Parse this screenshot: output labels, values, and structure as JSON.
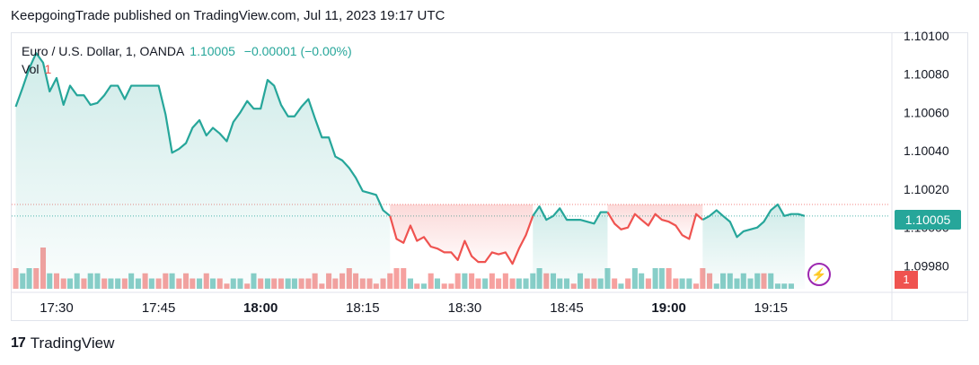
{
  "header": {
    "publisher": "KeepgoingTrade published on TradingView.com, Jul 11, 2023 19:17 UTC"
  },
  "legend": {
    "symbol": "Euro / U.S. Dollar, 1, OANDA",
    "price": "1.10005",
    "change": "−0.00001 (−0.00%)",
    "vol_label": "Vol",
    "vol_value": "1"
  },
  "price_tag": "1.10005",
  "vol_tag": "1",
  "footer": {
    "brand": "TradingView",
    "logo_text": "17"
  },
  "icons": {
    "bolt": "lightning-icon"
  },
  "colors": {
    "up": "#26a69a",
    "down": "#ef5350",
    "accent": "#9c27b0"
  },
  "chart_data": {
    "type": "area",
    "y_ticks": [
      "1.10100",
      "1.10080",
      "1.10060",
      "1.10040",
      "1.10020",
      "1.10000",
      "1.09980"
    ],
    "ylim": [
      1.09968,
      1.101
    ],
    "x_ticks": [
      {
        "label": "17:30",
        "x": 17.5,
        "bold": false
      },
      {
        "label": "17:45",
        "x": 17.75,
        "bold": false
      },
      {
        "label": "18:00",
        "x": 18.0,
        "bold": true
      },
      {
        "label": "18:15",
        "x": 18.25,
        "bold": false
      },
      {
        "label": "18:30",
        "x": 18.5,
        "bold": false
      },
      {
        "label": "18:45",
        "x": 18.75,
        "bold": false
      },
      {
        "label": "19:00",
        "x": 19.0,
        "bold": true
      },
      {
        "label": "19:15",
        "x": 19.25,
        "bold": false
      }
    ],
    "xlim": [
      17.39,
      19.54
    ],
    "reference_price": 1.10012,
    "series": [
      {
        "values": [
          {
            "x": 17.4,
            "y": 1.10063
          },
          {
            "x": 17.417,
            "y": 1.10073
          },
          {
            "x": 17.433,
            "y": 1.10083
          },
          {
            "x": 17.45,
            "y": 1.10091
          },
          {
            "x": 17.467,
            "y": 1.10086
          },
          {
            "x": 17.483,
            "y": 1.10071
          },
          {
            "x": 17.5,
            "y": 1.10078
          },
          {
            "x": 17.517,
            "y": 1.10064
          },
          {
            "x": 17.533,
            "y": 1.10074
          },
          {
            "x": 17.55,
            "y": 1.10069
          },
          {
            "x": 17.567,
            "y": 1.10069
          },
          {
            "x": 17.583,
            "y": 1.10064
          },
          {
            "x": 17.6,
            "y": 1.10065
          },
          {
            "x": 17.617,
            "y": 1.10069
          },
          {
            "x": 17.633,
            "y": 1.10074
          },
          {
            "x": 17.65,
            "y": 1.10074
          },
          {
            "x": 17.667,
            "y": 1.10067
          },
          {
            "x": 17.683,
            "y": 1.10074
          },
          {
            "x": 17.7,
            "y": 1.10074
          },
          {
            "x": 17.717,
            "y": 1.10074
          },
          {
            "x": 17.733,
            "y": 1.10074
          },
          {
            "x": 17.75,
            "y": 1.10074
          },
          {
            "x": 17.767,
            "y": 1.10059
          },
          {
            "x": 17.783,
            "y": 1.10039
          },
          {
            "x": 17.8,
            "y": 1.10041
          },
          {
            "x": 17.817,
            "y": 1.10044
          },
          {
            "x": 17.833,
            "y": 1.10052
          },
          {
            "x": 17.85,
            "y": 1.10056
          },
          {
            "x": 17.867,
            "y": 1.10048
          },
          {
            "x": 17.883,
            "y": 1.10052
          },
          {
            "x": 17.9,
            "y": 1.10049
          },
          {
            "x": 17.917,
            "y": 1.10045
          },
          {
            "x": 17.933,
            "y": 1.10055
          },
          {
            "x": 17.95,
            "y": 1.1006
          },
          {
            "x": 17.967,
            "y": 1.10066
          },
          {
            "x": 17.983,
            "y": 1.10062
          },
          {
            "x": 18.0,
            "y": 1.10062
          },
          {
            "x": 18.017,
            "y": 1.10077
          },
          {
            "x": 18.033,
            "y": 1.10074
          },
          {
            "x": 18.05,
            "y": 1.10064
          },
          {
            "x": 18.067,
            "y": 1.10058
          },
          {
            "x": 18.083,
            "y": 1.10058
          },
          {
            "x": 18.1,
            "y": 1.10063
          },
          {
            "x": 18.117,
            "y": 1.10067
          },
          {
            "x": 18.133,
            "y": 1.10057
          },
          {
            "x": 18.15,
            "y": 1.10047
          },
          {
            "x": 18.167,
            "y": 1.10047
          },
          {
            "x": 18.183,
            "y": 1.10037
          },
          {
            "x": 18.2,
            "y": 1.10035
          },
          {
            "x": 18.217,
            "y": 1.10031
          },
          {
            "x": 18.233,
            "y": 1.10026
          },
          {
            "x": 18.25,
            "y": 1.10019
          },
          {
            "x": 18.267,
            "y": 1.10018
          },
          {
            "x": 18.283,
            "y": 1.10017
          },
          {
            "x": 18.3,
            "y": 1.10009
          },
          {
            "x": 18.317,
            "y": 1.10006
          }
        ]
      },
      {
        "values": [
          {
            "x": 18.317,
            "y": 1.10006
          },
          {
            "x": 18.333,
            "y": 1.09994
          },
          {
            "x": 18.35,
            "y": 1.09992
          },
          {
            "x": 18.367,
            "y": 1.10001
          },
          {
            "x": 18.383,
            "y": 1.09993
          },
          {
            "x": 18.4,
            "y": 1.09995
          },
          {
            "x": 18.417,
            "y": 1.0999
          },
          {
            "x": 18.433,
            "y": 1.09989
          },
          {
            "x": 18.45,
            "y": 1.09987
          },
          {
            "x": 18.467,
            "y": 1.09987
          },
          {
            "x": 18.483,
            "y": 1.09983
          },
          {
            "x": 18.5,
            "y": 1.09993
          },
          {
            "x": 18.517,
            "y": 1.09985
          },
          {
            "x": 18.533,
            "y": 1.09982
          },
          {
            "x": 18.55,
            "y": 1.09982
          },
          {
            "x": 18.567,
            "y": 1.09987
          },
          {
            "x": 18.583,
            "y": 1.09986
          },
          {
            "x": 18.6,
            "y": 1.09987
          },
          {
            "x": 18.617,
            "y": 1.09981
          },
          {
            "x": 18.633,
            "y": 1.09989
          },
          {
            "x": 18.65,
            "y": 1.09996
          },
          {
            "x": 18.667,
            "y": 1.10006
          }
        ]
      },
      {
        "values": [
          {
            "x": 18.667,
            "y": 1.10006
          },
          {
            "x": 18.683,
            "y": 1.10011
          },
          {
            "x": 18.7,
            "y": 1.10004
          },
          {
            "x": 18.717,
            "y": 1.10006
          },
          {
            "x": 18.733,
            "y": 1.1001
          },
          {
            "x": 18.75,
            "y": 1.10004
          },
          {
            "x": 18.767,
            "y": 1.10004
          },
          {
            "x": 18.783,
            "y": 1.10004
          },
          {
            "x": 18.8,
            "y": 1.10003
          },
          {
            "x": 18.817,
            "y": 1.10002
          },
          {
            "x": 18.833,
            "y": 1.10008
          },
          {
            "x": 18.85,
            "y": 1.10008
          }
        ]
      },
      {
        "values": [
          {
            "x": 18.85,
            "y": 1.10008
          },
          {
            "x": 18.867,
            "y": 1.10002
          },
          {
            "x": 18.883,
            "y": 1.09999
          },
          {
            "x": 18.9,
            "y": 1.1
          },
          {
            "x": 18.917,
            "y": 1.10007
          },
          {
            "x": 18.933,
            "y": 1.10004
          },
          {
            "x": 18.95,
            "y": 1.10001
          },
          {
            "x": 18.967,
            "y": 1.10007
          },
          {
            "x": 18.983,
            "y": 1.10004
          },
          {
            "x": 19.0,
            "y": 1.10003
          },
          {
            "x": 19.017,
            "y": 1.10001
          },
          {
            "x": 19.033,
            "y": 1.09996
          },
          {
            "x": 19.05,
            "y": 1.09994
          },
          {
            "x": 19.067,
            "y": 1.10007
          },
          {
            "x": 19.083,
            "y": 1.10004
          }
        ]
      },
      {
        "values": [
          {
            "x": 19.083,
            "y": 1.10004
          },
          {
            "x": 19.1,
            "y": 1.10006
          },
          {
            "x": 19.117,
            "y": 1.10009
          },
          {
            "x": 19.133,
            "y": 1.10006
          },
          {
            "x": 19.15,
            "y": 1.10003
          },
          {
            "x": 19.167,
            "y": 1.09995
          },
          {
            "x": 19.183,
            "y": 1.09998
          },
          {
            "x": 19.2,
            "y": 1.09999
          },
          {
            "x": 19.217,
            "y": 1.1
          },
          {
            "x": 19.233,
            "y": 1.10003
          },
          {
            "x": 19.25,
            "y": 1.10009
          },
          {
            "x": 19.267,
            "y": 1.10012
          },
          {
            "x": 19.283,
            "y": 1.10006
          },
          {
            "x": 19.3,
            "y": 1.10007
          },
          {
            "x": 19.317,
            "y": 1.10007
          },
          {
            "x": 19.333,
            "y": 1.10006
          }
        ]
      }
    ],
    "series_colors": [
      "#26a69a",
      "#ef5350",
      "#26a69a",
      "#ef5350",
      "#26a69a"
    ],
    "volume": [
      {
        "x": 17.4,
        "v": 4,
        "up": false
      },
      {
        "x": 17.417,
        "v": 3,
        "up": true
      },
      {
        "x": 17.433,
        "v": 4,
        "up": true
      },
      {
        "x": 17.45,
        "v": 4,
        "up": false
      },
      {
        "x": 17.467,
        "v": 8,
        "up": false
      },
      {
        "x": 17.483,
        "v": 3,
        "up": true
      },
      {
        "x": 17.5,
        "v": 3,
        "up": false
      },
      {
        "x": 17.517,
        "v": 2,
        "up": false
      },
      {
        "x": 17.533,
        "v": 2,
        "up": true
      },
      {
        "x": 17.55,
        "v": 3,
        "up": true
      },
      {
        "x": 17.567,
        "v": 2,
        "up": false
      },
      {
        "x": 17.583,
        "v": 3,
        "up": true
      },
      {
        "x": 17.6,
        "v": 3,
        "up": true
      },
      {
        "x": 17.617,
        "v": 2,
        "up": false
      },
      {
        "x": 17.633,
        "v": 2,
        "up": true
      },
      {
        "x": 17.65,
        "v": 2,
        "up": true
      },
      {
        "x": 17.667,
        "v": 2,
        "up": false
      },
      {
        "x": 17.683,
        "v": 3,
        "up": true
      },
      {
        "x": 17.7,
        "v": 2,
        "up": true
      },
      {
        "x": 17.717,
        "v": 3,
        "up": false
      },
      {
        "x": 17.733,
        "v": 2,
        "up": true
      },
      {
        "x": 17.75,
        "v": 2,
        "up": false
      },
      {
        "x": 17.767,
        "v": 3,
        "up": false
      },
      {
        "x": 17.783,
        "v": 3,
        "up": true
      },
      {
        "x": 17.8,
        "v": 2,
        "up": false
      },
      {
        "x": 17.817,
        "v": 3,
        "up": false
      },
      {
        "x": 17.833,
        "v": 2,
        "up": false
      },
      {
        "x": 17.85,
        "v": 2,
        "up": true
      },
      {
        "x": 17.867,
        "v": 3,
        "up": false
      },
      {
        "x": 17.883,
        "v": 2,
        "up": true
      },
      {
        "x": 17.9,
        "v": 2,
        "up": false
      },
      {
        "x": 17.917,
        "v": 1,
        "up": false
      },
      {
        "x": 17.933,
        "v": 2,
        "up": true
      },
      {
        "x": 17.95,
        "v": 2,
        "up": true
      },
      {
        "x": 17.967,
        "v": 1,
        "up": false
      },
      {
        "x": 17.983,
        "v": 3,
        "up": true
      },
      {
        "x": 18.0,
        "v": 2,
        "up": false
      },
      {
        "x": 18.017,
        "v": 2,
        "up": true
      },
      {
        "x": 18.033,
        "v": 2,
        "up": false
      },
      {
        "x": 18.05,
        "v": 2,
        "up": false
      },
      {
        "x": 18.067,
        "v": 2,
        "up": true
      },
      {
        "x": 18.083,
        "v": 2,
        "up": true
      },
      {
        "x": 18.1,
        "v": 2,
        "up": false
      },
      {
        "x": 18.117,
        "v": 2,
        "up": false
      },
      {
        "x": 18.133,
        "v": 3,
        "up": false
      },
      {
        "x": 18.15,
        "v": 1,
        "up": false
      },
      {
        "x": 18.167,
        "v": 3,
        "up": false
      },
      {
        "x": 18.183,
        "v": 2,
        "up": false
      },
      {
        "x": 18.2,
        "v": 3,
        "up": false
      },
      {
        "x": 18.217,
        "v": 4,
        "up": false
      },
      {
        "x": 18.233,
        "v": 3,
        "up": false
      },
      {
        "x": 18.25,
        "v": 2,
        "up": false
      },
      {
        "x": 18.267,
        "v": 2,
        "up": false
      },
      {
        "x": 18.283,
        "v": 1,
        "up": false
      },
      {
        "x": 18.3,
        "v": 2,
        "up": false
      },
      {
        "x": 18.317,
        "v": 3,
        "up": false
      },
      {
        "x": 18.333,
        "v": 4,
        "up": false
      },
      {
        "x": 18.35,
        "v": 4,
        "up": false
      },
      {
        "x": 18.367,
        "v": 2,
        "up": true
      },
      {
        "x": 18.383,
        "v": 1,
        "up": false
      },
      {
        "x": 18.4,
        "v": 1,
        "up": true
      },
      {
        "x": 18.417,
        "v": 3,
        "up": false
      },
      {
        "x": 18.433,
        "v": 2,
        "up": true
      },
      {
        "x": 18.45,
        "v": 1,
        "up": false
      },
      {
        "x": 18.467,
        "v": 1,
        "up": false
      },
      {
        "x": 18.483,
        "v": 3,
        "up": false
      },
      {
        "x": 18.5,
        "v": 3,
        "up": true
      },
      {
        "x": 18.517,
        "v": 3,
        "up": false
      },
      {
        "x": 18.533,
        "v": 2,
        "up": false
      },
      {
        "x": 18.55,
        "v": 2,
        "up": true
      },
      {
        "x": 18.567,
        "v": 3,
        "up": false
      },
      {
        "x": 18.583,
        "v": 2,
        "up": false
      },
      {
        "x": 18.6,
        "v": 3,
        "up": false
      },
      {
        "x": 18.617,
        "v": 2,
        "up": false
      },
      {
        "x": 18.633,
        "v": 2,
        "up": true
      },
      {
        "x": 18.65,
        "v": 2,
        "up": true
      },
      {
        "x": 18.667,
        "v": 3,
        "up": true
      },
      {
        "x": 18.683,
        "v": 4,
        "up": true
      },
      {
        "x": 18.7,
        "v": 3,
        "up": false
      },
      {
        "x": 18.717,
        "v": 3,
        "up": true
      },
      {
        "x": 18.733,
        "v": 2,
        "up": true
      },
      {
        "x": 18.75,
        "v": 2,
        "up": true
      },
      {
        "x": 18.767,
        "v": 1,
        "up": false
      },
      {
        "x": 18.783,
        "v": 3,
        "up": true
      },
      {
        "x": 18.8,
        "v": 2,
        "up": false
      },
      {
        "x": 18.817,
        "v": 2,
        "up": false
      },
      {
        "x": 18.833,
        "v": 2,
        "up": true
      },
      {
        "x": 18.85,
        "v": 4,
        "up": true
      },
      {
        "x": 18.867,
        "v": 2,
        "up": false
      },
      {
        "x": 18.883,
        "v": 1,
        "up": true
      },
      {
        "x": 18.9,
        "v": 2,
        "up": false
      },
      {
        "x": 18.917,
        "v": 4,
        "up": true
      },
      {
        "x": 18.933,
        "v": 3,
        "up": true
      },
      {
        "x": 18.95,
        "v": 2,
        "up": false
      },
      {
        "x": 18.967,
        "v": 4,
        "up": true
      },
      {
        "x": 18.983,
        "v": 4,
        "up": true
      },
      {
        "x": 19.0,
        "v": 4,
        "up": false
      },
      {
        "x": 19.017,
        "v": 2,
        "up": false
      },
      {
        "x": 19.033,
        "v": 2,
        "up": true
      },
      {
        "x": 19.05,
        "v": 2,
        "up": true
      },
      {
        "x": 19.067,
        "v": 1,
        "up": false
      },
      {
        "x": 19.083,
        "v": 4,
        "up": false
      },
      {
        "x": 19.1,
        "v": 3,
        "up": false
      },
      {
        "x": 19.117,
        "v": 1,
        "up": true
      },
      {
        "x": 19.133,
        "v": 3,
        "up": true
      },
      {
        "x": 19.15,
        "v": 3,
        "up": true
      },
      {
        "x": 19.167,
        "v": 2,
        "up": true
      },
      {
        "x": 19.183,
        "v": 3,
        "up": true
      },
      {
        "x": 19.2,
        "v": 2,
        "up": true
      },
      {
        "x": 19.217,
        "v": 3,
        "up": true
      },
      {
        "x": 19.233,
        "v": 3,
        "up": false
      },
      {
        "x": 19.25,
        "v": 3,
        "up": true
      },
      {
        "x": 19.267,
        "v": 1,
        "up": true
      },
      {
        "x": 19.283,
        "v": 1,
        "up": true
      },
      {
        "x": 19.3,
        "v": 1,
        "up": true
      }
    ],
    "grid": false,
    "legend": "top-left"
  }
}
